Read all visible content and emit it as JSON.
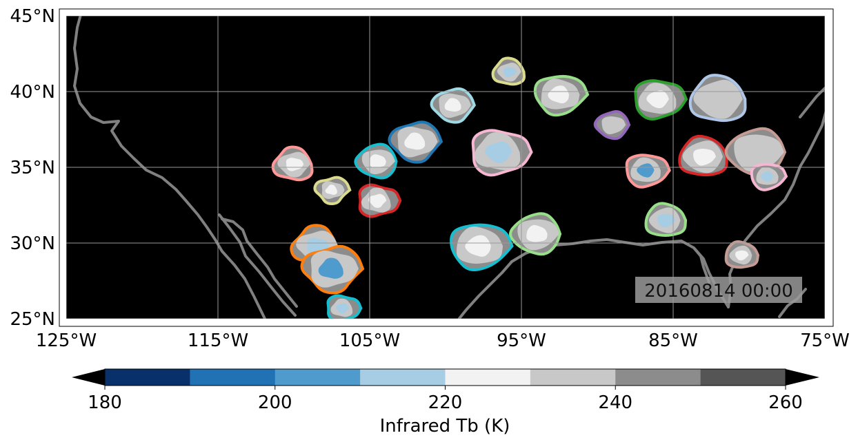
{
  "map": {
    "timestamp": "20160814 00:00",
    "lat_ticks": [
      {
        "value": 45,
        "label": "45°N"
      },
      {
        "value": 40,
        "label": "40°N"
      },
      {
        "value": 35,
        "label": "35°N"
      },
      {
        "value": 30,
        "label": "30°N"
      },
      {
        "value": 25,
        "label": "25°N"
      }
    ],
    "lon_ticks": [
      {
        "value": -125,
        "label": "125°W"
      },
      {
        "value": -115,
        "label": "115°W"
      },
      {
        "value": -105,
        "label": "105°W"
      },
      {
        "value": -95,
        "label": "95°W"
      },
      {
        "value": -85,
        "label": "85°W"
      },
      {
        "value": -75,
        "label": "75°W"
      }
    ],
    "lon_range": [
      -125,
      -75
    ],
    "lat_range": [
      25,
      45
    ],
    "grid": true,
    "background_color": "#000000",
    "coastline_color": "#808080"
  },
  "colorbar": {
    "label": "Infrared Tb (K)",
    "ticks": [
      "180",
      "200",
      "220",
      "240",
      "260"
    ],
    "range": [
      180,
      260
    ],
    "colors": [
      "#08306b",
      "#2171b5",
      "#4f9bcd",
      "#a6cde3",
      "#f2f2f2",
      "#c8c8c8",
      "#8c8c8c",
      "#555555"
    ],
    "extend": "both"
  },
  "cloud_systems": [
    {
      "lon": -107.5,
      "lat": 33.5,
      "outline": "#dbdb8d",
      "core": "#f2f2f2"
    },
    {
      "lon": -104.5,
      "lat": 32.8,
      "outline": "#d62728",
      "core": "#f2f2f2"
    },
    {
      "lon": -108.5,
      "lat": 29.8,
      "outline": "#ff7f0e",
      "core": "#a6cde3"
    },
    {
      "lon": -107.5,
      "lat": 28.3,
      "outline": "#ff7f0e",
      "core": "#4f9bcd"
    },
    {
      "lon": -106.8,
      "lat": 25.7,
      "outline": "#17becf",
      "core": "#a6cde3"
    },
    {
      "lon": -110.0,
      "lat": 35.2,
      "outline": "#ff9896",
      "core": "#f2f2f2"
    },
    {
      "lon": -102.0,
      "lat": 36.7,
      "outline": "#1f77b4",
      "core": "#f2f2f2"
    },
    {
      "lon": -96.5,
      "lat": 36.0,
      "outline": "#f7b6d2",
      "core": "#a6cde3"
    },
    {
      "lon": -95.8,
      "lat": 41.3,
      "outline": "#dbdb8d",
      "core": "#a6cde3"
    },
    {
      "lon": -99.5,
      "lat": 39.1,
      "outline": "#9edae5",
      "core": "#f2f2f2"
    },
    {
      "lon": -86.0,
      "lat": 39.5,
      "outline": "#2ca02c",
      "core": "#f2f2f2"
    },
    {
      "lon": -82.0,
      "lat": 39.5,
      "outline": "#aec7e8",
      "core": "#c8c8c8"
    },
    {
      "lon": -89.0,
      "lat": 37.8,
      "outline": "#9467bd",
      "core": "#c8c8c8"
    },
    {
      "lon": -86.8,
      "lat": 34.8,
      "outline": "#ff9896",
      "core": "#4f9bcd"
    },
    {
      "lon": -83.0,
      "lat": 35.7,
      "outline": "#d62728",
      "core": "#f2f2f2"
    },
    {
      "lon": -79.5,
      "lat": 36.0,
      "outline": "#c49c94",
      "core": "#c8c8c8"
    },
    {
      "lon": -78.8,
      "lat": 34.4,
      "outline": "#f7b6d2",
      "core": "#a6cde3"
    },
    {
      "lon": -85.5,
      "lat": 31.5,
      "outline": "#98df8a",
      "core": "#a6cde3"
    },
    {
      "lon": -94.0,
      "lat": 30.6,
      "outline": "#98df8a",
      "core": "#f2f2f2"
    },
    {
      "lon": -97.8,
      "lat": 29.8,
      "outline": "#17becf",
      "core": "#f2f2f2"
    },
    {
      "lon": -80.5,
      "lat": 29.2,
      "outline": "#c49c94",
      "core": "#f2f2f2"
    },
    {
      "lon": -104.5,
      "lat": 35.4,
      "outline": "#17becf",
      "core": "#f2f2f2"
    },
    {
      "lon": -92.5,
      "lat": 39.8,
      "outline": "#98df8a",
      "core": "#f2f2f2"
    }
  ]
}
